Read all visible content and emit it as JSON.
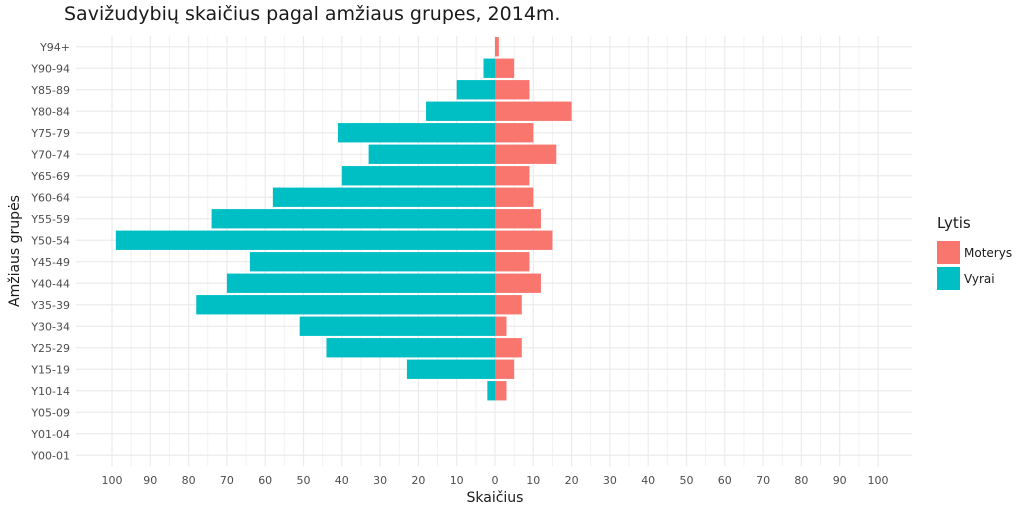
{
  "chart_data": {
    "type": "bar",
    "orientation": "horizontal",
    "layout": "population-pyramid",
    "title": "Savižudybių skaičius pagal amžiaus grupes, 2014m.",
    "xlabel": "Skaičius",
    "ylabel": "Amžiaus grupės",
    "categories": [
      "Y00-01",
      "Y01-04",
      "Y05-09",
      "Y10-14",
      "Y15-19",
      "Y25-29",
      "Y30-34",
      "Y35-39",
      "Y40-44",
      "Y45-49",
      "Y50-54",
      "Y55-59",
      "Y60-64",
      "Y65-69",
      "Y70-74",
      "Y75-79",
      "Y80-84",
      "Y85-89",
      "Y90-94",
      "Y94+"
    ],
    "series": [
      {
        "name": "Moterys",
        "color": "#F8766D",
        "direction": "right",
        "values": [
          0,
          0,
          0,
          3,
          5,
          7,
          3,
          7,
          12,
          9,
          15,
          12,
          10,
          9,
          16,
          10,
          20,
          9,
          5,
          1
        ]
      },
      {
        "name": "Vyrai",
        "color": "#00BFC4",
        "direction": "left",
        "values": [
          0,
          0,
          0,
          2,
          23,
          44,
          51,
          78,
          70,
          64,
          99,
          74,
          58,
          40,
          33,
          41,
          18,
          10,
          3,
          0
        ]
      }
    ],
    "x_ticks": [
      -100,
      -90,
      -80,
      -70,
      -60,
      -50,
      -40,
      -30,
      -20,
      -10,
      0,
      10,
      20,
      30,
      40,
      50,
      60,
      70,
      80,
      90,
      100
    ],
    "x_tick_labels": [
      "100",
      "90",
      "80",
      "70",
      "60",
      "50",
      "40",
      "30",
      "20",
      "10",
      "0",
      "10",
      "20",
      "30",
      "40",
      "50",
      "60",
      "70",
      "80",
      "90",
      "100"
    ],
    "xlim": [
      -105,
      105
    ],
    "grid": true,
    "legend": {
      "title": "Lytis",
      "position": "right"
    }
  }
}
